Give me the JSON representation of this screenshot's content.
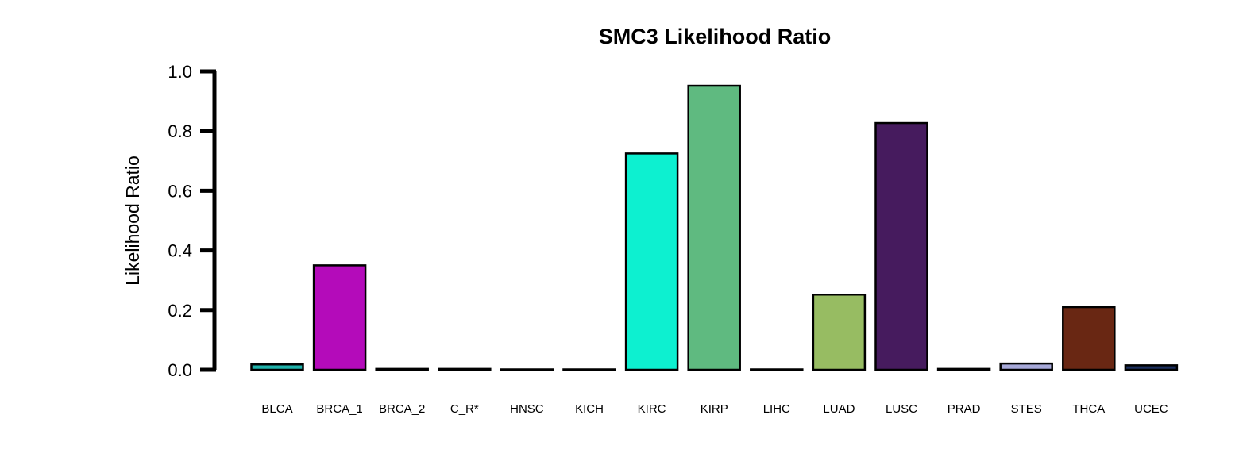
{
  "chart_data": {
    "type": "bar",
    "title": "SMC3 Likelihood Ratio",
    "xlabel": "",
    "ylabel": "Likelihood Ratio",
    "ylim": [
      0,
      1.0
    ],
    "yticks": [
      "0.0",
      "0.2",
      "0.4",
      "0.6",
      "0.8",
      "1.0"
    ],
    "grid": false,
    "categories": [
      "BLCA",
      "BRCA_1",
      "BRCA_2",
      "C_R*",
      "HNSC",
      "KICH",
      "KIRC",
      "KIRP",
      "LIHC",
      "LUAD",
      "LUSC",
      "PRAD",
      "STES",
      "THCA",
      "UCEC"
    ],
    "values": [
      0.018,
      0.35,
      0.003,
      0.003,
      0.001,
      0.001,
      0.725,
      0.952,
      0.001,
      0.252,
      0.827,
      0.003,
      0.021,
      0.21,
      0.015
    ],
    "colors": [
      "#20B2AA",
      "#B40BBA",
      "#1E5A9A",
      "#5C2A8C",
      "#1B4F9C",
      "#2B9A8A",
      "#0DF0D0",
      "#5FBA80",
      "#3D6A2C",
      "#97BC62",
      "#461B5E",
      "#A43030",
      "#A7A9D9",
      "#692713",
      "#1B2F5E"
    ]
  }
}
